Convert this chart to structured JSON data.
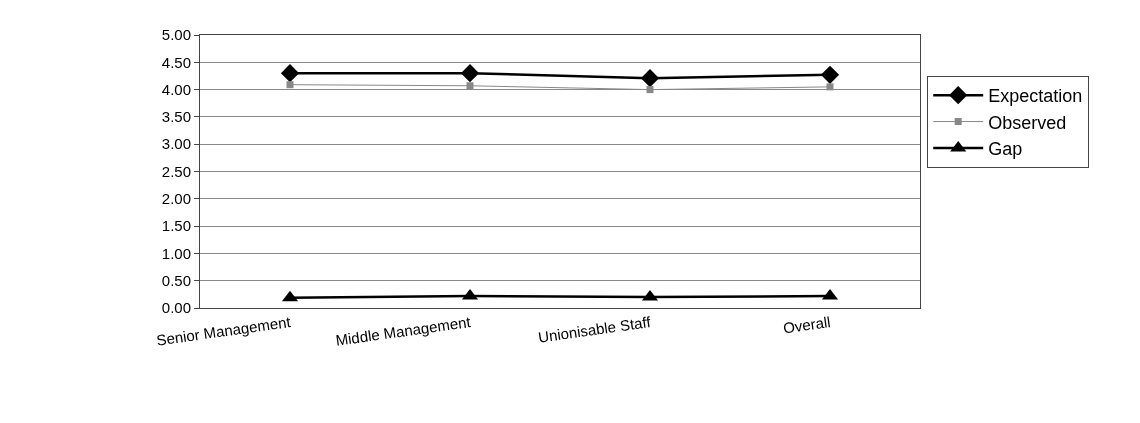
{
  "chart_data": {
    "type": "line",
    "categories": [
      "Senior Management",
      "Middle Management",
      "Unionisable Staff",
      "Overall"
    ],
    "series": [
      {
        "name": "Expectation",
        "color": "#000000",
        "marker": "diamond",
        "values": [
          4.3,
          4.3,
          4.21,
          4.27
        ]
      },
      {
        "name": "Observed",
        "color": "#888888",
        "marker": "square",
        "values": [
          4.09,
          4.07,
          4.0,
          4.05
        ]
      },
      {
        "name": "Gap",
        "color": "#000000",
        "marker": "triangle",
        "values": [
          0.19,
          0.22,
          0.2,
          0.22
        ]
      }
    ],
    "ylim": [
      0,
      5
    ],
    "yticks": [
      {
        "value": 0,
        "label": "0.00"
      },
      {
        "value": 0.5,
        "label": "0.50"
      },
      {
        "value": 1,
        "label": "1.00"
      },
      {
        "value": 1.5,
        "label": "1.50"
      },
      {
        "value": 2,
        "label": "2.00"
      },
      {
        "value": 2.5,
        "label": "2.50"
      },
      {
        "value": 3,
        "label": "3.00"
      },
      {
        "value": 3.5,
        "label": "3.50"
      },
      {
        "value": 4,
        "label": "4.00"
      },
      {
        "value": 4.5,
        "label": "4.50"
      },
      {
        "value": 5,
        "label": "5.00"
      }
    ],
    "grid": "y",
    "legend": "right",
    "line_style": "solid"
  }
}
